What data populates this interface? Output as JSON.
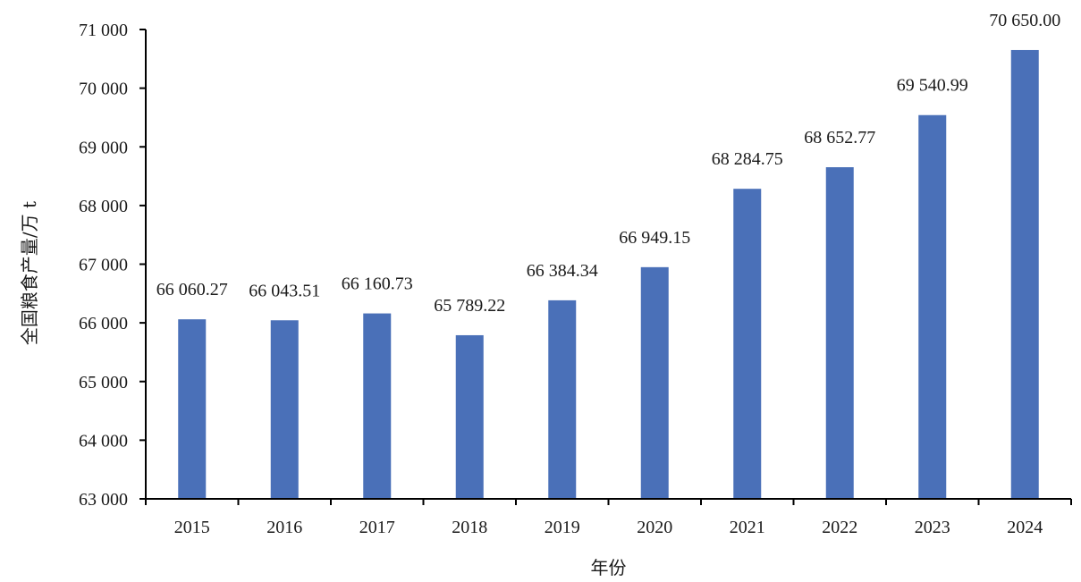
{
  "chart_data": {
    "type": "bar",
    "categories": [
      "2015",
      "2016",
      "2017",
      "2018",
      "2019",
      "2020",
      "2021",
      "2022",
      "2023",
      "2024"
    ],
    "values": [
      66060.27,
      66043.51,
      66160.73,
      65789.22,
      66384.34,
      66949.15,
      68284.75,
      68652.77,
      69540.99,
      70650.0
    ],
    "data_labels": [
      "66 060.27",
      "66 043.51",
      "66 160.73",
      "65 789.22",
      "66 384.34",
      "66 949.15",
      "68 284.75",
      "68 652.77",
      "69 540.99",
      "70 650.00"
    ],
    "xlabel": "年份",
    "ylabel": "全国粮食产量/万 t",
    "ylim": [
      63000,
      71000
    ],
    "yticks": [
      63000,
      64000,
      65000,
      66000,
      67000,
      68000,
      69000,
      70000,
      71000
    ],
    "ytick_labels": [
      "63 000",
      "64 000",
      "65 000",
      "66 000",
      "67 000",
      "68 000",
      "69 000",
      "70 000",
      "71 000"
    ],
    "bar_color": "#4a70b8",
    "axis_color": "#000000",
    "grid": false,
    "legend": "none"
  }
}
